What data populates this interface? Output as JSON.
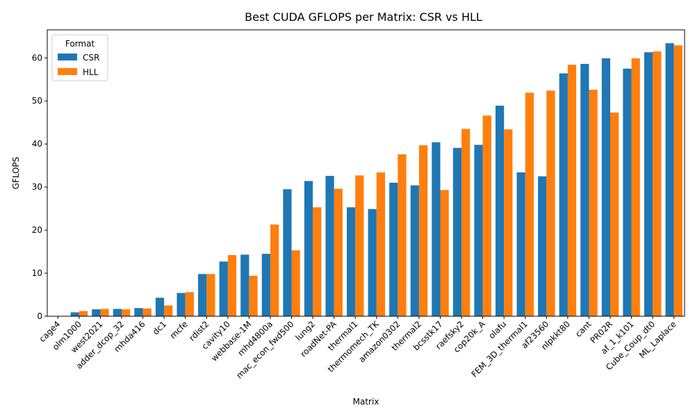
{
  "chart_data": {
    "type": "bar",
    "title": "Best CUDA GFLOPS per Matrix: CSR vs HLL",
    "xlabel": "Matrix",
    "ylabel": "GFLOPS",
    "ylim": [
      0,
      66.5
    ],
    "yticks": [
      0,
      10,
      20,
      30,
      40,
      50,
      60
    ],
    "grid": false,
    "legend": {
      "title": "Format",
      "placement": "top-left"
    },
    "categories": [
      "cage4",
      "olm1000",
      "west2021",
      "adder_dcop_32",
      "mhda416",
      "dc1",
      "mcfe",
      "rdist2",
      "cavity10",
      "webbase-1M",
      "mhd4800a",
      "mac_econ_fwd500",
      "lung2",
      "roadNet-PA",
      "thermal1",
      "thermomech_TK",
      "amazon0302",
      "thermal2",
      "bcsstk17",
      "raefsky2",
      "cop20k_A",
      "olafu",
      "FEM_3D_thermal1",
      "af23560",
      "nlpkkt80",
      "cant",
      "PR02R",
      "af_1_k101",
      "Cube_Coup_dt0",
      "ML_Laplace"
    ],
    "series": [
      {
        "name": "CSR",
        "color": "#1f77b4",
        "values": [
          0.05,
          0.9,
          1.6,
          1.7,
          1.9,
          4.3,
          5.4,
          9.8,
          12.7,
          14.3,
          14.5,
          29.5,
          31.4,
          32.6,
          25.3,
          24.9,
          31.0,
          30.4,
          40.4,
          39.1,
          39.8,
          48.9,
          33.4,
          32.5,
          56.4,
          58.6,
          59.9,
          57.5,
          61.3,
          63.4
        ]
      },
      {
        "name": "HLL",
        "color": "#ff7f0e",
        "values": [
          0.05,
          1.2,
          1.7,
          1.6,
          1.8,
          2.5,
          5.6,
          9.8,
          14.2,
          9.4,
          21.3,
          15.3,
          25.3,
          29.6,
          32.7,
          33.4,
          37.6,
          39.7,
          29.3,
          43.5,
          46.6,
          43.4,
          51.9,
          52.4,
          58.4,
          52.6,
          47.3,
          59.9,
          61.5,
          62.9
        ]
      }
    ]
  }
}
